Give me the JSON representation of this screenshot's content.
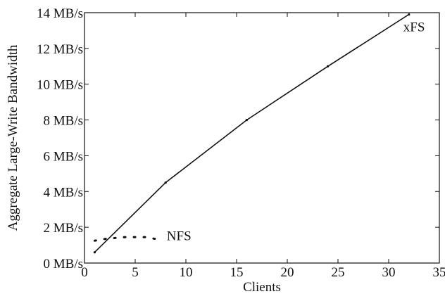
{
  "chart_data": {
    "type": "line",
    "title": "",
    "xlabel": "Clients",
    "ylabel": "Aggregate Large-Write Bandwidth",
    "xlim": [
      0,
      35
    ],
    "ylim": [
      0,
      14
    ],
    "xticks": [
      0,
      5,
      10,
      15,
      20,
      25,
      30,
      35
    ],
    "xtick_labels": [
      "0",
      "5",
      "10",
      "15",
      "20",
      "25",
      "30",
      "35"
    ],
    "yticks": [
      0,
      2,
      4,
      6,
      8,
      10,
      12,
      14
    ],
    "ytick_labels": [
      "0 MB/s",
      "2 MB/s",
      "4 MB/s",
      "6 MB/s",
      "8 MB/s",
      "10 MB/s",
      "12 MB/s",
      "14 MB/s"
    ],
    "grid": false,
    "series": [
      {
        "name": "xFS",
        "style": "solid",
        "x": [
          1,
          8,
          16,
          24,
          32
        ],
        "y": [
          0.6,
          4.5,
          8.0,
          11.0,
          13.9
        ]
      },
      {
        "name": "NFS",
        "style": "dotted",
        "x": [
          1,
          2,
          3,
          4,
          5,
          6,
          7
        ],
        "y": [
          1.25,
          1.35,
          1.4,
          1.45,
          1.45,
          1.45,
          1.35
        ]
      }
    ],
    "colors": {
      "axis": "#111111",
      "line": "#111111"
    }
  }
}
